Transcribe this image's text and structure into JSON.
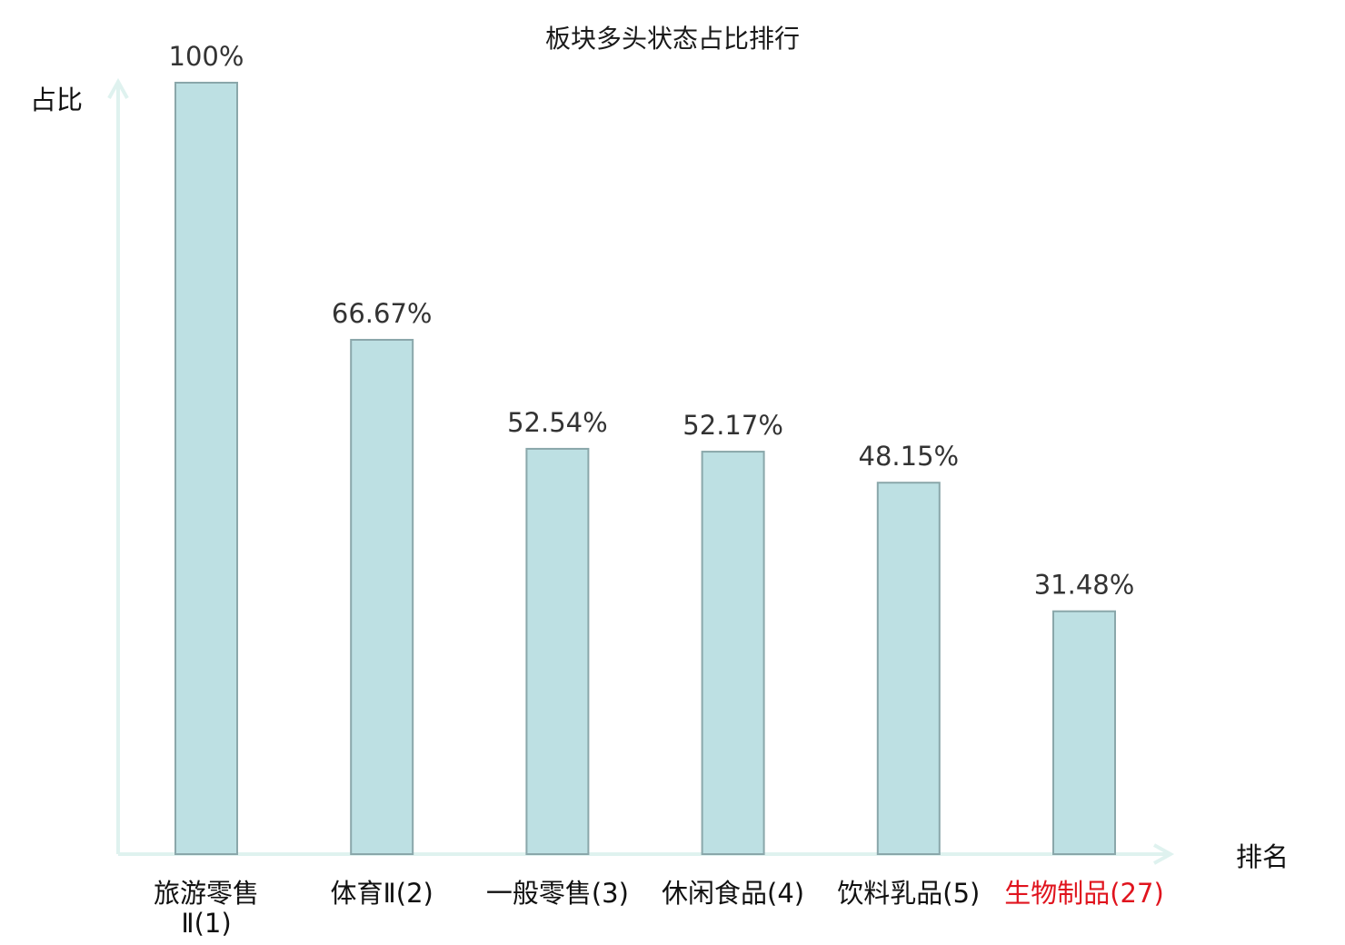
{
  "chart_data": {
    "type": "bar",
    "title": "板块多头状态占比排行",
    "ylabel": "占比",
    "xlabel": "排名",
    "categories": [
      "旅游零售Ⅱ(1)",
      "体育Ⅱ(2)",
      "一般零售(3)",
      "休闲食品(4)",
      "饮料乳品(5)",
      "生物制品(27)"
    ],
    "category_lines": [
      [
        "旅游零售",
        "Ⅱ(1)"
      ],
      [
        "体育Ⅱ(2)"
      ],
      [
        "一般零售(3)"
      ],
      [
        "休闲食品(4)"
      ],
      [
        "饮料乳品(5)"
      ],
      [
        "生物制品(27)"
      ]
    ],
    "values": [
      100,
      66.67,
      52.54,
      52.17,
      48.15,
      31.48
    ],
    "value_labels": [
      "100%",
      "66.67%",
      "52.54%",
      "52.17%",
      "48.15%",
      "31.48%"
    ],
    "highlight_index": 5,
    "ylim": [
      0,
      100
    ],
    "grid": false,
    "colors": {
      "bar_fill": "#bde0e3",
      "bar_stroke": "#8aa7aa",
      "axis": "#dff2ef",
      "highlight_text": "#e0141e",
      "text": "#111111"
    }
  }
}
